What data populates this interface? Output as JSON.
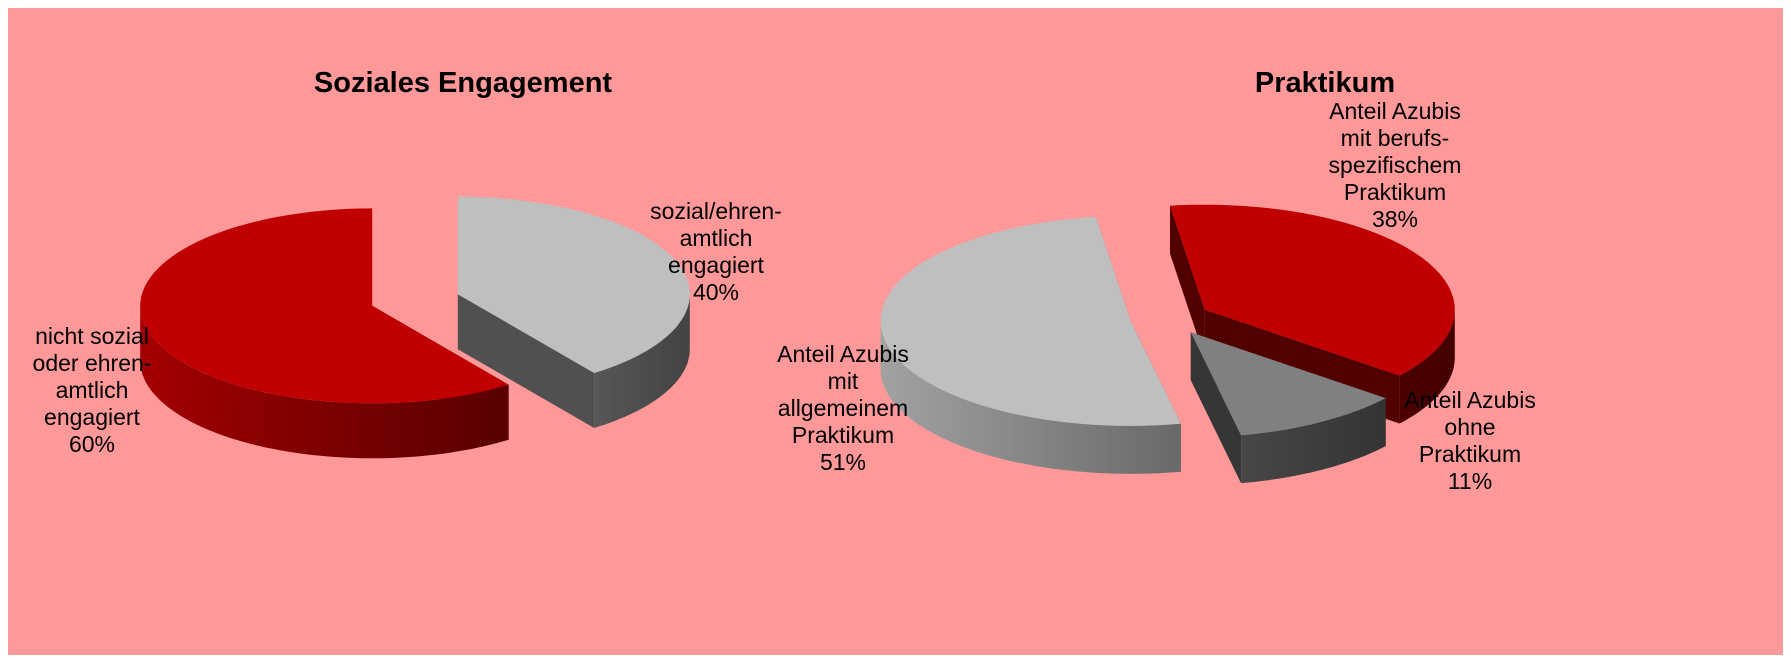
{
  "chart_data": [
    {
      "type": "pie",
      "title": "Soziales Engagement",
      "categories": [
        "nicht sozial\noder ehren-\namtlich\nengagiert",
        "sozial/ehren-\namtlich\nengagiert"
      ],
      "values": [
        60,
        40
      ],
      "value_labels": [
        "60%",
        "40%"
      ],
      "colors": [
        "#c00000",
        "#bfbfbf"
      ]
    },
    {
      "type": "pie",
      "title": "Praktikum",
      "categories": [
        "Anteil Azubis\nmit berufs-\nspezifischem\nPraktikum",
        "Anteil Azubis\nohne\nPraktikum",
        "Anteil Azubis\nmit\nallgemeinem\nPraktikum"
      ],
      "values": [
        38,
        11,
        51
      ],
      "value_labels": [
        "38%",
        "11%",
        "51%"
      ],
      "colors": [
        "#c00000",
        "#808080",
        "#bfbfbf"
      ]
    }
  ]
}
